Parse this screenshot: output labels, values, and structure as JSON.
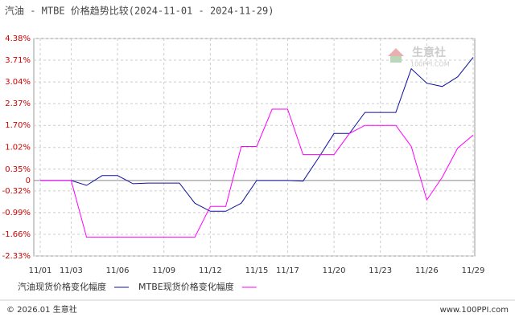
{
  "chart_data": {
    "type": "line",
    "title": "汽油 - MTBE 价格趋势比较(2024-11-01 - 2024-11-29)",
    "categories": [
      "11/01",
      null,
      "11/03",
      null,
      null,
      "11/06",
      null,
      null,
      "11/09",
      null,
      null,
      "11/12",
      null,
      null,
      "11/15",
      null,
      "11/17",
      null,
      null,
      "11/20",
      null,
      null,
      "11/23",
      null,
      null,
      "11/26",
      null,
      null,
      "11/29"
    ],
    "series": [
      {
        "name": "汽油现货价格变化幅度",
        "color": "#1010a0",
        "values": [
          0,
          0,
          0,
          -0.15,
          0.15,
          0.15,
          -0.1,
          -0.08,
          -0.08,
          -0.08,
          -0.7,
          -0.95,
          -0.95,
          -0.7,
          0,
          0,
          0,
          -0.02,
          0.7,
          1.45,
          1.45,
          2.1,
          2.1,
          2.1,
          3.45,
          3.0,
          2.9,
          3.2,
          3.8
        ]
      },
      {
        "name": "MTBE现货价格变化幅度",
        "color": "#ff00ff",
        "values": [
          0,
          0,
          0,
          -1.75,
          -1.75,
          -1.75,
          -1.75,
          -1.75,
          -1.75,
          -1.75,
          -1.75,
          -0.8,
          -0.8,
          1.05,
          1.05,
          2.2,
          2.2,
          0.8,
          0.8,
          0.8,
          1.45,
          1.7,
          1.7,
          1.7,
          1.05,
          -0.6,
          0.1,
          1.0,
          1.4
        ]
      }
    ],
    "ylim": [
      -2.33,
      4.38
    ],
    "yticks": [
      {
        "value": 4.38,
        "label": "4.38%"
      },
      {
        "value": 3.71,
        "label": "3.71%"
      },
      {
        "value": 3.04,
        "label": "3.04%"
      },
      {
        "value": 2.37,
        "label": "2.37%"
      },
      {
        "value": 1.7,
        "label": "1.70%"
      },
      {
        "value": 1.02,
        "label": "1.02%"
      },
      {
        "value": 0.35,
        "label": "0.35%"
      },
      0,
      {
        "value": -0.32,
        "label": "-0.32%"
      },
      {
        "value": -0.99,
        "label": "-0.99%"
      },
      {
        "value": -1.66,
        "label": "-1.66%"
      },
      {
        "value": -2.33,
        "label": "-2.33%"
      }
    ],
    "grid": true,
    "watermark": {
      "name": "生意社",
      "site": "100PPI.COM"
    },
    "footer": {
      "left": "© 2026.01 生意社",
      "right": "www.100PPI.com"
    }
  }
}
